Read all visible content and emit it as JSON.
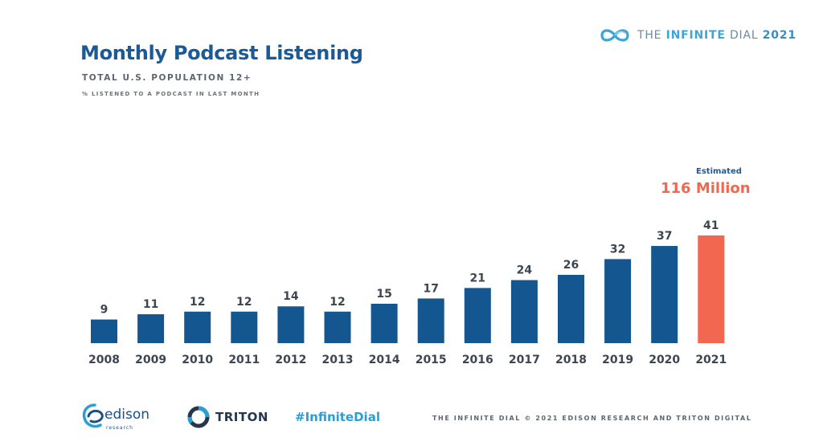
{
  "header": {
    "title": "Monthly Podcast Listening",
    "subtitle": "TOTAL U.S. POPULATION 12+",
    "note": "% LISTENED TO A PODCAST IN LAST MONTH"
  },
  "brand": {
    "prefix": "THE ",
    "strong": "INFINITE",
    "suffix": " DIAL",
    "year": "2021"
  },
  "callout": {
    "label": "Estimated",
    "value": "116 Million"
  },
  "chart_data": {
    "type": "bar",
    "categories": [
      "2008",
      "2009",
      "2010",
      "2011",
      "2012",
      "2013",
      "2014",
      "2015",
      "2016",
      "2017",
      "2018",
      "2019",
      "2020",
      "2021"
    ],
    "values": [
      9,
      11,
      12,
      12,
      14,
      12,
      15,
      17,
      21,
      24,
      26,
      32,
      37,
      41
    ],
    "title": "Monthly Podcast Listening",
    "subtitle": "TOTAL U.S. POPULATION 12+",
    "ylabel": "% LISTENED TO A PODCAST IN LAST MONTH",
    "ylim": [
      0,
      41
    ],
    "grid": false,
    "legend": "none",
    "bar_color": "#14568f",
    "highlight_color": "#f26750",
    "highlight_category": "2021"
  },
  "footer": {
    "edison": "edison",
    "edison_sub": "research",
    "triton": "TRITON",
    "hashtag": "#InfiniteDial",
    "copyright": "THE INFINITE DIAL   © 2021 EDISON RESEARCH AND TRITON DIGITAL"
  },
  "icons": {
    "brand": "infinity-icon",
    "edison": "edison-swirl-icon",
    "triton": "triton-logo-icon"
  }
}
